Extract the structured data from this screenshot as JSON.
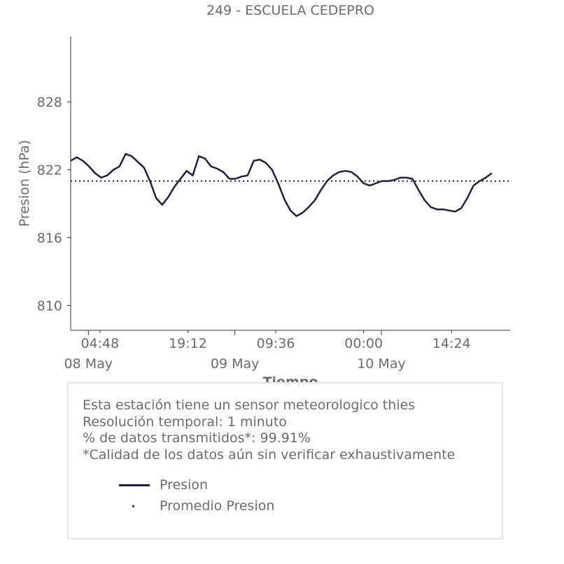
{
  "chart_data": {
    "type": "line",
    "title": "249 - ESCUELA CEDEPRO",
    "xlabel": "Tiempo",
    "ylabel": "Presion (hPa)",
    "ylim": [
      807.8,
      833.8
    ],
    "yticks": [
      810,
      816,
      822,
      828
    ],
    "x_range_hours": [
      0,
      72
    ],
    "xticks_minor": [
      {
        "hour": 4.8,
        "label": "04:48"
      },
      {
        "hour": 19.2,
        "label": "19:12"
      },
      {
        "hour": 33.6,
        "label": "09:36"
      },
      {
        "hour": 48,
        "label": "00:00"
      },
      {
        "hour": 62.4,
        "label": "14:24"
      }
    ],
    "xticks_major": [
      {
        "hour": 2.9,
        "label": "08 May"
      },
      {
        "hour": 26.9,
        "label": "09 May"
      },
      {
        "hour": 50.9,
        "label": "10 May"
      }
    ],
    "grid": false,
    "series": [
      {
        "name": "Presion",
        "color": "#1f1f45",
        "style": "solid",
        "points": [
          [
            0,
            822.8
          ],
          [
            1,
            823.1
          ],
          [
            2,
            822.8
          ],
          [
            3,
            822.3
          ],
          [
            4,
            821.7
          ],
          [
            5,
            821.3
          ],
          [
            6,
            821.5
          ],
          [
            7,
            822.0
          ],
          [
            8,
            822.3
          ],
          [
            9,
            823.4
          ],
          [
            10,
            823.2
          ],
          [
            11,
            822.7
          ],
          [
            12,
            822.2
          ],
          [
            13,
            821.0
          ],
          [
            14,
            819.5
          ],
          [
            15,
            818.9
          ],
          [
            16,
            819.6
          ],
          [
            17,
            820.5
          ],
          [
            18,
            821.2
          ],
          [
            19,
            821.9
          ],
          [
            20,
            821.5
          ],
          [
            21,
            823.2
          ],
          [
            22,
            823.0
          ],
          [
            23,
            822.3
          ],
          [
            24,
            822.1
          ],
          [
            25,
            821.8
          ],
          [
            26,
            821.2
          ],
          [
            27,
            821.2
          ],
          [
            28,
            821.4
          ],
          [
            29,
            821.5
          ],
          [
            30,
            822.8
          ],
          [
            31,
            822.9
          ],
          [
            32,
            822.6
          ],
          [
            33,
            822.0
          ],
          [
            34,
            820.8
          ],
          [
            35,
            819.4
          ],
          [
            36,
            818.4
          ],
          [
            37,
            817.9
          ],
          [
            38,
            818.2
          ],
          [
            39,
            818.7
          ],
          [
            40,
            819.3
          ],
          [
            41,
            820.2
          ],
          [
            42,
            821.0
          ],
          [
            43,
            821.5
          ],
          [
            44,
            821.8
          ],
          [
            45,
            821.9
          ],
          [
            46,
            821.8
          ],
          [
            47,
            821.4
          ],
          [
            48,
            820.8
          ],
          [
            49,
            820.6
          ],
          [
            50,
            820.8
          ],
          [
            51,
            821.0
          ],
          [
            52,
            821.0
          ],
          [
            53,
            821.1
          ],
          [
            54,
            821.3
          ],
          [
            55,
            821.3
          ],
          [
            56,
            821.2
          ],
          [
            57,
            820.2
          ],
          [
            58,
            819.3
          ],
          [
            59,
            818.7
          ],
          [
            60,
            818.5
          ],
          [
            61,
            818.5
          ],
          [
            62,
            818.4
          ],
          [
            63,
            818.3
          ],
          [
            64,
            818.6
          ],
          [
            65,
            819.5
          ],
          [
            66,
            820.6
          ],
          [
            67,
            821.0
          ],
          [
            68,
            821.3
          ],
          [
            69,
            821.7
          ]
        ]
      },
      {
        "name": "Promedio Presion",
        "color": "#1f1f45",
        "style": "dotted",
        "constant": 821.0
      }
    ],
    "legend_placement": "bottom"
  },
  "info": {
    "lines": [
      "Esta estación tiene un sensor meteorologico thies",
      "Resolución temporal: 1 minuto",
      "% de datos transmitidos*: 99.91%",
      "*Calidad de los datos aún sin verificar exhaustivamente"
    ]
  },
  "legend": {
    "items": [
      "Presion",
      "Promedio Presion"
    ]
  }
}
